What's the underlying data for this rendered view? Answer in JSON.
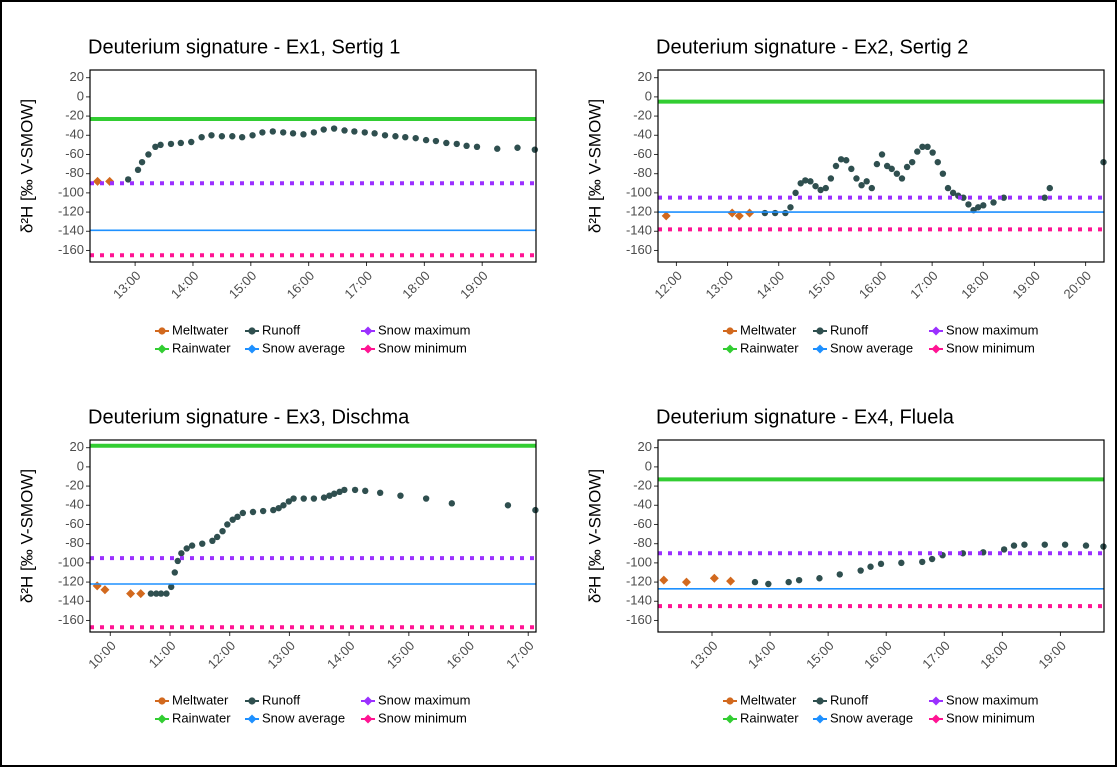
{
  "chart_data": [
    {
      "type": "scatter",
      "title": "Deuterium signature - Ex1, Sertig 1",
      "y_label": "δ²H [‰ V-SMOW]",
      "xlim": [
        12.22,
        19.93
      ],
      "ylim": [
        -172,
        28
      ],
      "xticks": [
        {
          "value": 13,
          "label": "13:00"
        },
        {
          "value": 14,
          "label": "14:00"
        },
        {
          "value": 15,
          "label": "15:00"
        },
        {
          "value": 16,
          "label": "16:00"
        },
        {
          "value": 17,
          "label": "17:00"
        },
        {
          "value": 18,
          "label": "18:00"
        },
        {
          "value": 19,
          "label": "19:00"
        }
      ],
      "yticks": [
        20,
        0,
        -20,
        -40,
        -60,
        -80,
        -100,
        -120,
        -140,
        -160
      ],
      "series": [
        {
          "name": "Meltwater",
          "color": "#d2691e",
          "style": "diamond",
          "x": [
            12.35,
            12.56
          ],
          "values": [
            -88,
            -88
          ]
        },
        {
          "name": "Rainwater",
          "color": "#32cd32",
          "style": "hline",
          "values": [
            -23
          ]
        },
        {
          "name": "Runoff",
          "color": "#2f4f4f",
          "style": "circle",
          "x": [
            12.88,
            13.05,
            13.12,
            13.23,
            13.35,
            13.44,
            13.62,
            13.79,
            13.97,
            14.15,
            14.32,
            14.5,
            14.68,
            14.85,
            15.03,
            15.2,
            15.38,
            15.56,
            15.73,
            15.91,
            16.09,
            16.26,
            16.44,
            16.62,
            16.79,
            16.97,
            17.14,
            17.32,
            17.5,
            17.67,
            17.85,
            18.03,
            18.2,
            18.38,
            18.56,
            18.73,
            18.91,
            19.26,
            19.61,
            19.91
          ],
          "values": [
            -86,
            -76,
            -68,
            -60,
            -52,
            -50,
            -49,
            -48,
            -47,
            -42,
            -40,
            -41,
            -41,
            -42,
            -40,
            -37,
            -36,
            -37,
            -38,
            -39,
            -37,
            -34,
            -33,
            -35,
            -36,
            -37,
            -38,
            -40,
            -41,
            -42,
            -43,
            -45,
            -46,
            -48,
            -49,
            -51,
            -52,
            -54,
            -53,
            -55
          ]
        },
        {
          "name": "Snow average",
          "color": "#1e90ff",
          "style": "hline-thin",
          "values": [
            -139
          ]
        },
        {
          "name": "Snow maximum",
          "color": "#9b30ff",
          "style": "hline-dot",
          "values": [
            -90
          ]
        },
        {
          "name": "Snow minimum",
          "color": "#ff1493",
          "style": "hline-dot",
          "values": [
            -165
          ]
        }
      ]
    },
    {
      "type": "scatter",
      "title": "Deuterium signature - Ex2, Sertig 2",
      "y_label": "δ²H [‰ V-SMOW]",
      "xlim": [
        11.64,
        20.36
      ],
      "ylim": [
        -172,
        28
      ],
      "xticks": [
        {
          "value": 12,
          "label": "12:00"
        },
        {
          "value": 13,
          "label": "13:00"
        },
        {
          "value": 14,
          "label": "14:00"
        },
        {
          "value": 15,
          "label": "15:00"
        },
        {
          "value": 16,
          "label": "16:00"
        },
        {
          "value": 17,
          "label": "17:00"
        },
        {
          "value": 18,
          "label": "18:00"
        },
        {
          "value": 19,
          "label": "19:00"
        },
        {
          "value": 20,
          "label": "20:00"
        }
      ],
      "yticks": [
        20,
        0,
        -20,
        -40,
        -60,
        -80,
        -100,
        -120,
        -140,
        -160
      ],
      "series": [
        {
          "name": "Meltwater",
          "color": "#d2691e",
          "style": "diamond",
          "x": [
            11.8,
            13.09,
            13.23,
            13.43
          ],
          "values": [
            -124,
            -121,
            -124,
            -121
          ]
        },
        {
          "name": "Rainwater",
          "color": "#32cd32",
          "style": "hline",
          "values": [
            -5
          ]
        },
        {
          "name": "Runoff",
          "color": "#2f4f4f",
          "style": "circle",
          "x": [
            13.73,
            13.93,
            14.13,
            14.23,
            14.33,
            14.43,
            14.52,
            14.62,
            14.72,
            14.82,
            14.92,
            15.02,
            15.12,
            15.22,
            15.32,
            15.42,
            15.52,
            15.62,
            15.72,
            15.82,
            15.92,
            16.02,
            16.12,
            16.21,
            16.31,
            16.41,
            16.51,
            16.61,
            16.71,
            16.81,
            16.91,
            17.01,
            17.11,
            17.21,
            17.31,
            17.41,
            17.51,
            17.61,
            17.71,
            17.81,
            17.9,
            18.0,
            18.2,
            18.4,
            19.2,
            19.3,
            20.35
          ],
          "values": [
            -121,
            -121,
            -121,
            -115,
            -100,
            -90,
            -87,
            -88,
            -93,
            -97,
            -95,
            -85,
            -72,
            -65,
            -66,
            -75,
            -85,
            -92,
            -88,
            -95,
            -70,
            -60,
            -72,
            -75,
            -80,
            -85,
            -73,
            -68,
            -57,
            -52,
            -52,
            -58,
            -68,
            -80,
            -95,
            -100,
            -103,
            -105,
            -112,
            -118,
            -115,
            -113,
            -110,
            -105,
            -105,
            -95,
            -68
          ]
        },
        {
          "name": "Snow average",
          "color": "#1e90ff",
          "style": "hline-thin",
          "values": [
            -120
          ]
        },
        {
          "name": "Snow maximum",
          "color": "#9b30ff",
          "style": "hline-dot",
          "values": [
            -105
          ]
        },
        {
          "name": "Snow minimum",
          "color": "#ff1493",
          "style": "hline-dot",
          "values": [
            -138
          ]
        }
      ]
    },
    {
      "type": "scatter",
      "title": "Deuterium signature - Ex3, Dischma",
      "y_label": "δ²H [‰ V-SMOW]",
      "xlim": [
        9.66,
        17.13
      ],
      "ylim": [
        -172,
        28
      ],
      "xticks": [
        {
          "value": 10,
          "label": "10:00"
        },
        {
          "value": 11,
          "label": "11:00"
        },
        {
          "value": 12,
          "label": "12:00"
        },
        {
          "value": 13,
          "label": "13:00"
        },
        {
          "value": 14,
          "label": "14:00"
        },
        {
          "value": 15,
          "label": "15:00"
        },
        {
          "value": 16,
          "label": "16:00"
        },
        {
          "value": 17,
          "label": "17:00"
        }
      ],
      "yticks": [
        20,
        0,
        -20,
        -40,
        -60,
        -80,
        -100,
        -120,
        -140,
        -160
      ],
      "series": [
        {
          "name": "Meltwater",
          "color": "#d2691e",
          "style": "diamond",
          "x": [
            9.78,
            9.91,
            10.34,
            10.51
          ],
          "values": [
            -124,
            -128,
            -132,
            -132
          ]
        },
        {
          "name": "Rainwater",
          "color": "#32cd32",
          "style": "hline",
          "values": [
            22
          ]
        },
        {
          "name": "Runoff",
          "color": "#2f4f4f",
          "style": "circle",
          "x": [
            10.68,
            10.77,
            10.85,
            10.94,
            11.02,
            11.08,
            11.13,
            11.19,
            11.28,
            11.37,
            11.54,
            11.71,
            11.79,
            11.88,
            11.96,
            12.05,
            12.13,
            12.22,
            12.39,
            12.56,
            12.73,
            12.82,
            12.9,
            12.99,
            13.07,
            13.24,
            13.41,
            13.58,
            13.67,
            13.75,
            13.84,
            13.92,
            14.1,
            14.27,
            14.52,
            14.86,
            15.29,
            15.72,
            16.66,
            17.12
          ],
          "values": [
            -132,
            -132,
            -132,
            -132,
            -125,
            -110,
            -98,
            -90,
            -85,
            -82,
            -80,
            -77,
            -73,
            -67,
            -60,
            -55,
            -52,
            -48,
            -47,
            -46,
            -45,
            -43,
            -40,
            -36,
            -33,
            -33,
            -33,
            -32,
            -30,
            -28,
            -26,
            -24,
            -24,
            -25,
            -27,
            -30,
            -33,
            -38,
            -40,
            -45
          ]
        },
        {
          "name": "Snow average",
          "color": "#1e90ff",
          "style": "hline-thin",
          "values": [
            -122
          ]
        },
        {
          "name": "Snow maximum",
          "color": "#9b30ff",
          "style": "hline-dot",
          "values": [
            -95
          ]
        },
        {
          "name": "Snow minimum",
          "color": "#ff1493",
          "style": "hline-dot",
          "values": [
            -167
          ]
        }
      ]
    },
    {
      "type": "scatter",
      "title": "Deuterium signature - Ex4, Fluela",
      "y_label": "δ²H [‰ V-SMOW]",
      "xlim": [
        12.07,
        19.75
      ],
      "ylim": [
        -172,
        28
      ],
      "xticks": [
        {
          "value": 13,
          "label": "13:00"
        },
        {
          "value": 14,
          "label": "14:00"
        },
        {
          "value": 15,
          "label": "15:00"
        },
        {
          "value": 16,
          "label": "16:00"
        },
        {
          "value": 17,
          "label": "17:00"
        },
        {
          "value": 18,
          "label": "18:00"
        },
        {
          "value": 19,
          "label": "19:00"
        }
      ],
      "yticks": [
        20,
        0,
        -20,
        -40,
        -60,
        -80,
        -100,
        -120,
        -140,
        -160
      ],
      "series": [
        {
          "name": "Meltwater",
          "color": "#d2691e",
          "style": "diamond",
          "x": [
            12.17,
            12.56,
            13.04,
            13.32
          ],
          "values": [
            -118,
            -120,
            -116,
            -119
          ]
        },
        {
          "name": "Rainwater",
          "color": "#32cd32",
          "style": "hline",
          "values": [
            -13
          ]
        },
        {
          "name": "Runoff",
          "color": "#2f4f4f",
          "style": "circle",
          "x": [
            13.74,
            13.97,
            14.32,
            14.5,
            14.85,
            15.2,
            15.56,
            15.73,
            15.91,
            16.26,
            16.62,
            16.79,
            16.97,
            17.32,
            17.67,
            18.03,
            18.2,
            18.38,
            18.73,
            19.08,
            19.44,
            19.74
          ],
          "values": [
            -120,
            -122,
            -120,
            -118,
            -116,
            -112,
            -108,
            -104,
            -101,
            -100,
            -99,
            -96,
            -92,
            -90,
            -89,
            -86,
            -82,
            -81,
            -81,
            -81,
            -82,
            -83
          ]
        },
        {
          "name": "Snow average",
          "color": "#1e90ff",
          "style": "hline-thin",
          "values": [
            -127
          ]
        },
        {
          "name": "Snow maximum",
          "color": "#9b30ff",
          "style": "hline-dot",
          "values": [
            -90
          ]
        },
        {
          "name": "Snow minimum",
          "color": "#ff1493",
          "style": "hline-dot",
          "values": [
            -145
          ]
        }
      ]
    }
  ]
}
